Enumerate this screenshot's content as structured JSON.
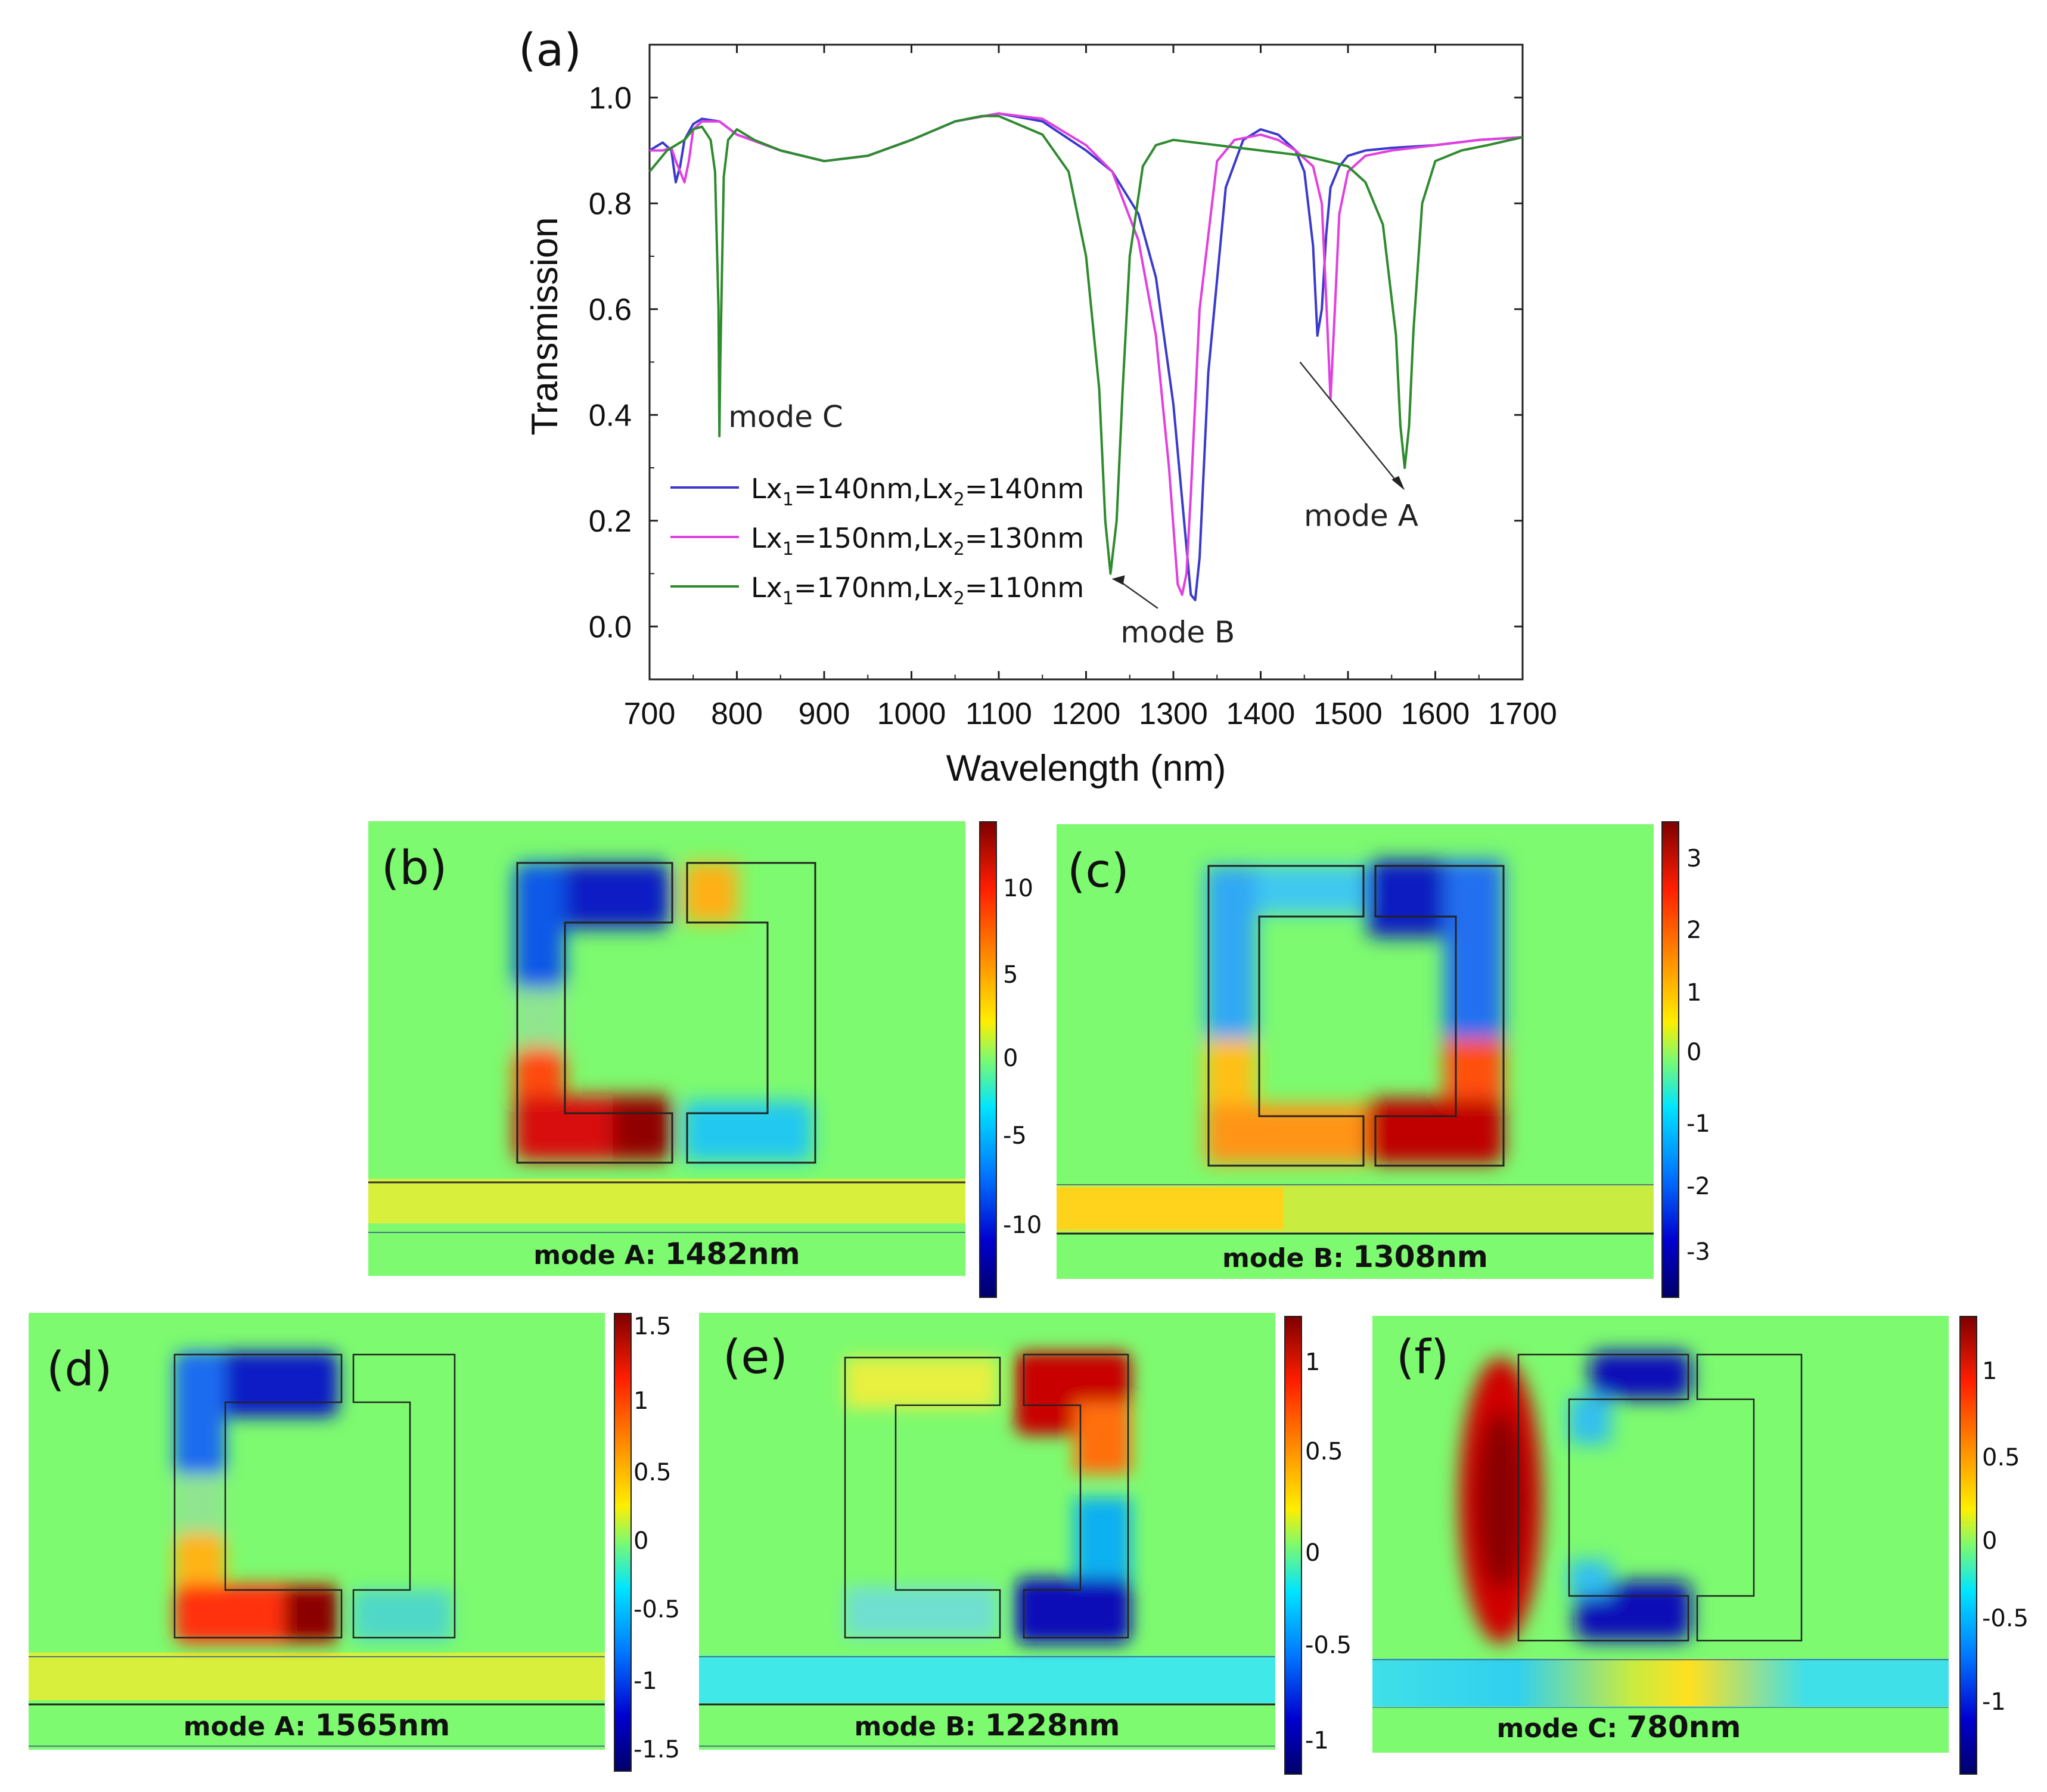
{
  "chart_data": [
    {
      "type": "line",
      "panel_label": "(a)",
      "xlabel": "Wavelength (nm)",
      "ylabel": "Transmission",
      "xlim": [
        700,
        1700
      ],
      "ylim": [
        -0.1,
        1.1
      ],
      "xticks": [
        "700",
        "800",
        "900",
        "1000",
        "1100",
        "1200",
        "1300",
        "1400",
        "1500",
        "1600",
        "1700"
      ],
      "yticks": [
        "0.0",
        "0.2",
        "0.4",
        "0.6",
        "0.8",
        "1.0"
      ],
      "legend_position": "bottom-left",
      "series": [
        {
          "name": "Lx1=140nm,Lx2=140nm",
          "legend_base": "Lx",
          "legend_sub1": "1",
          "legend_mid": "=140nm,Lx",
          "legend_sub2": "2",
          "legend_end": "=140nm",
          "color": "#3a3acc",
          "x": [
            700,
            715,
            725,
            730,
            735,
            740,
            750,
            760,
            780,
            800,
            850,
            900,
            950,
            1000,
            1050,
            1100,
            1150,
            1200,
            1230,
            1260,
            1280,
            1300,
            1315,
            1320,
            1325,
            1330,
            1340,
            1360,
            1380,
            1400,
            1420,
            1440,
            1450,
            1460,
            1465,
            1470,
            1475,
            1480,
            1490,
            1500,
            1520,
            1550,
            1600,
            1650,
            1700
          ],
          "y": [
            0.9,
            0.915,
            0.9,
            0.84,
            0.87,
            0.92,
            0.95,
            0.96,
            0.955,
            0.93,
            0.9,
            0.88,
            0.89,
            0.92,
            0.955,
            0.97,
            0.955,
            0.9,
            0.86,
            0.78,
            0.66,
            0.42,
            0.15,
            0.06,
            0.05,
            0.13,
            0.48,
            0.83,
            0.92,
            0.94,
            0.93,
            0.9,
            0.86,
            0.72,
            0.55,
            0.6,
            0.74,
            0.83,
            0.87,
            0.89,
            0.9,
            0.905,
            0.91,
            0.92,
            0.925
          ]
        },
        {
          "name": "Lx1=150nm,Lx2=130nm",
          "legend_base": "Lx",
          "legend_sub1": "1",
          "legend_mid": "=150nm,Lx",
          "legend_sub2": "2",
          "legend_end": "=130nm",
          "color": "#e040e0",
          "x": [
            700,
            715,
            725,
            730,
            735,
            740,
            745,
            750,
            760,
            780,
            800,
            850,
            900,
            950,
            1000,
            1050,
            1100,
            1150,
            1200,
            1230,
            1260,
            1280,
            1295,
            1305,
            1310,
            1315,
            1320,
            1330,
            1350,
            1370,
            1400,
            1420,
            1440,
            1460,
            1470,
            1475,
            1480,
            1485,
            1490,
            1500,
            1520,
            1550,
            1600,
            1650,
            1700
          ],
          "y": [
            0.9,
            0.9,
            0.905,
            0.88,
            0.86,
            0.84,
            0.88,
            0.94,
            0.955,
            0.955,
            0.93,
            0.9,
            0.88,
            0.89,
            0.92,
            0.955,
            0.97,
            0.96,
            0.91,
            0.86,
            0.73,
            0.55,
            0.3,
            0.08,
            0.06,
            0.1,
            0.25,
            0.6,
            0.88,
            0.92,
            0.93,
            0.92,
            0.9,
            0.87,
            0.8,
            0.62,
            0.43,
            0.6,
            0.78,
            0.86,
            0.89,
            0.9,
            0.91,
            0.92,
            0.925
          ]
        },
        {
          "name": "Lx1=170nm,Lx2=110nm",
          "legend_base": "Lx",
          "legend_sub1": "1",
          "legend_mid": "=170nm,Lx",
          "legend_sub2": "2",
          "legend_end": "=110nm",
          "color": "#2e8b2e",
          "x": [
            700,
            720,
            740,
            750,
            760,
            770,
            775,
            779,
            780,
            781,
            785,
            790,
            800,
            820,
            850,
            900,
            950,
            1000,
            1050,
            1080,
            1100,
            1150,
            1180,
            1200,
            1215,
            1222,
            1228,
            1235,
            1242,
            1250,
            1265,
            1280,
            1300,
            1350,
            1400,
            1450,
            1500,
            1520,
            1540,
            1555,
            1560,
            1565,
            1570,
            1575,
            1585,
            1600,
            1630,
            1660,
            1700
          ],
          "y": [
            0.86,
            0.9,
            0.92,
            0.94,
            0.945,
            0.92,
            0.86,
            0.6,
            0.36,
            0.5,
            0.85,
            0.92,
            0.94,
            0.92,
            0.9,
            0.88,
            0.89,
            0.92,
            0.955,
            0.965,
            0.965,
            0.93,
            0.86,
            0.7,
            0.45,
            0.2,
            0.1,
            0.2,
            0.45,
            0.7,
            0.87,
            0.91,
            0.92,
            0.91,
            0.9,
            0.89,
            0.87,
            0.84,
            0.76,
            0.55,
            0.38,
            0.3,
            0.38,
            0.56,
            0.8,
            0.88,
            0.9,
            0.91,
            0.925
          ]
        }
      ],
      "annotations": [
        {
          "text": "mode C",
          "x": 780,
          "y": 0.4
        },
        {
          "text": "mode B",
          "x": 1228,
          "y": 0.09,
          "arrow_from": [
            1330,
            0.04
          ]
        },
        {
          "text": "mode A",
          "x": 1565,
          "y": 0.28,
          "arrow_from": [
            1445,
            0.5
          ]
        }
      ]
    },
    {
      "type": "heatmap",
      "panel_label": "(b)",
      "caption_mode": "mode A:",
      "caption_value": "1482nm",
      "colorbar_ticks": [
        "10",
        "5",
        "0",
        "-5",
        "-10"
      ]
    },
    {
      "type": "heatmap",
      "panel_label": "(c)",
      "caption_mode": "mode B:",
      "caption_value": "1308nm",
      "colorbar_ticks": [
        "3",
        "2",
        "1",
        "0",
        "-1",
        "-2",
        "-3"
      ]
    },
    {
      "type": "heatmap",
      "panel_label": "(d)",
      "caption_mode": "mode A:",
      "caption_value": "1565nm",
      "colorbar_ticks": [
        "1.5",
        "1",
        "0.5",
        "0",
        "-0.5",
        "-1",
        "-1.5"
      ]
    },
    {
      "type": "heatmap",
      "panel_label": "(e)",
      "caption_mode": "mode B:",
      "caption_value": "1228nm",
      "colorbar_ticks": [
        "1",
        "0.5",
        "0",
        "-0.5",
        "-1"
      ]
    },
    {
      "type": "heatmap",
      "panel_label": "(f)",
      "caption_mode": "mode C:",
      "caption_value": "780nm",
      "colorbar_ticks": [
        "1",
        "0.5",
        "0",
        "-0.5",
        "-1"
      ]
    }
  ]
}
